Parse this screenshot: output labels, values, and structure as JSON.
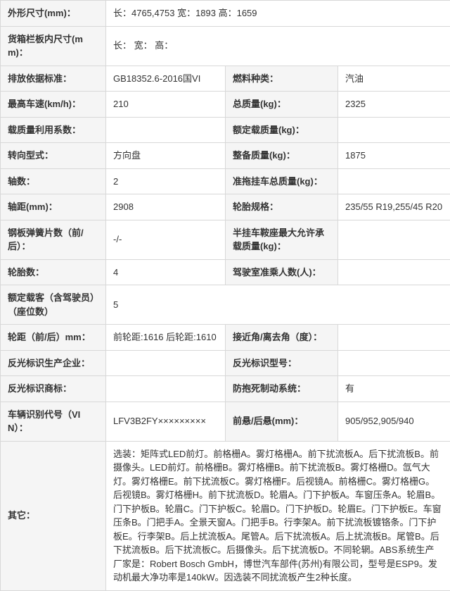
{
  "rows": [
    {
      "type": "full",
      "label": "外形尺寸(mm)：",
      "value": "长：4765,4753 宽：1893 高：1659"
    },
    {
      "type": "full",
      "label": "货箱栏板内尺寸(mm)：",
      "value": "长： 宽： 高："
    },
    {
      "type": "pair",
      "l1": "排放依据标准：",
      "v1": "GB18352.6-2016国VI",
      "l2": "燃料种类：",
      "v2": "汽油"
    },
    {
      "type": "pair",
      "l1": "最高车速(km/h)：",
      "v1": "210",
      "l2": "总质量(kg)：",
      "v2": "2325"
    },
    {
      "type": "pair",
      "l1": "载质量利用系数：",
      "v1": "",
      "l2": "额定载质量(kg)：",
      "v2": ""
    },
    {
      "type": "pair",
      "l1": "转向型式：",
      "v1": "方向盘",
      "l2": "整备质量(kg)：",
      "v2": "1875"
    },
    {
      "type": "pair",
      "l1": "轴数：",
      "v1": "2",
      "l2": "准拖挂车总质量(kg)：",
      "v2": ""
    },
    {
      "type": "pair",
      "l1": "轴距(mm)：",
      "v1": "2908",
      "l2": "轮胎规格：",
      "v2": "235/55 R19,255/45 R20"
    },
    {
      "type": "pair",
      "l1": "钢板弹簧片数（前/后）：",
      "v1": "-/-",
      "l2": "半挂车鞍座最大允许承载质量(kg)：",
      "v2": ""
    },
    {
      "type": "pair",
      "l1": "轮胎数：",
      "v1": "4",
      "l2": "驾驶室准乘人数(人)：",
      "v2": ""
    },
    {
      "type": "full",
      "label": "额定载客（含驾驶员）（座位数）",
      "value": "5"
    },
    {
      "type": "pair",
      "l1": "轮距（前/后）mm：",
      "v1": "前轮距:1616 后轮距:1610",
      "l2": "接近角/离去角（度）：",
      "v2": ""
    },
    {
      "type": "pair",
      "l1": "反光标识生产企业：",
      "v1": "",
      "l2": "反光标识型号：",
      "v2": ""
    },
    {
      "type": "pair",
      "l1": "反光标识商标：",
      "v1": "",
      "l2": "防抱死制动系统：",
      "v2": "有"
    },
    {
      "type": "pair",
      "l1": "车辆识别代号（VIN）：",
      "v1": "LFV3B2FY×××××××××",
      "l2": "前悬/后悬(mm)：",
      "v2": "905/952,905/940"
    },
    {
      "type": "full",
      "label": "其它：",
      "value": "选装：矩阵式LED前灯。前格栅A。雾灯格栅A。前下扰流板A。后下扰流板B。前摄像头。LED前灯。前格栅B。雾灯格栅B。前下扰流板B。雾灯格栅D。氙气大灯。雾灯格栅E。前下扰流板C。雾灯格栅F。后视镜A。前格栅C。雾灯格栅G。后视镜B。雾灯格栅H。前下扰流板D。轮眉A。门下护板A。车窗压条A。轮眉B。门下护板B。轮眉C。门下护板C。轮眉D。门下护板D。轮眉E。门下护板E。车窗压条B。门把手A。全景天窗A。门把手B。行李架A。前下扰流板镀铬条。门下护板E。行李架B。后上扰流板A。尾管A。后下扰流板A。后上扰流板B。尾管B。后下扰流板B。后下扰流板C。后摄像头。后下扰流板D。不同轮辋。ABS系统生产厂家是：Robert Bosch GmbH，博世汽车部件(苏州)有限公司，型号是ESP9。发动机最大净功率是140kW。因选装不同扰流板产生2种长度。"
    }
  ]
}
